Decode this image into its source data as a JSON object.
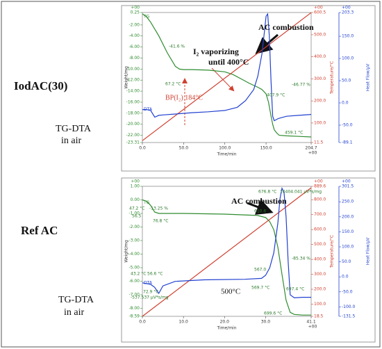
{
  "side_labels": [
    {
      "label": "IodAC(30)",
      "method": [
        "TG-DTA",
        "in air"
      ]
    },
    {
      "label": "Ref AC",
      "method": [
        "TG-DTA",
        "in air"
      ]
    }
  ],
  "chart_data": [
    {
      "type": "line",
      "x_label": "Time/min",
      "y_label": "Weight/mg",
      "y2_label": "Temperature/°C",
      "y3_label": "Heat Flow/µV",
      "exponent": "+00",
      "xlim": [
        0,
        204.7
      ],
      "xticks": [
        {
          "value": 0,
          "label": "0.0"
        },
        {
          "value": 50,
          "label": "50.0"
        },
        {
          "value": 100,
          "label": "100.0"
        },
        {
          "value": 150,
          "label": "150.0"
        },
        204.7
      ],
      "ylim": [
        -23.31,
        0.25
      ],
      "yticks": [
        0.25,
        {
          "value": -2,
          "label": "-2.00"
        },
        {
          "value": -4,
          "label": "-4.00"
        },
        {
          "value": -6,
          "label": "-6.00"
        },
        {
          "value": -8,
          "label": "-8.00"
        },
        {
          "value": -10,
          "label": "-10.00"
        },
        {
          "value": -12,
          "label": "-12.00"
        },
        {
          "value": -14,
          "label": "-14.00"
        },
        {
          "value": -16,
          "label": "-16.00"
        },
        {
          "value": -18,
          "label": "-18.00"
        },
        {
          "value": -20,
          "label": "-20.00"
        },
        {
          "value": -22,
          "label": "-22.00"
        },
        -23.31
      ],
      "y2lim": [
        11.5,
        600.5
      ],
      "y2ticks": [
        11.5,
        {
          "value": 100,
          "label": "100.0"
        },
        {
          "value": 200,
          "label": "200.0"
        },
        {
          "value": 300,
          "label": "300.0"
        },
        {
          "value": 400,
          "label": "400.0"
        },
        {
          "value": 500,
          "label": "500.0"
        },
        600.5
      ],
      "y3lim": [
        -89.1,
        203.3
      ],
      "y3ticks": [
        -89.1,
        {
          "value": -50,
          "label": "-50.0"
        },
        {
          "value": 0,
          "label": "0.0"
        },
        {
          "value": 50,
          "label": "50.0"
        },
        {
          "value": 100,
          "label": "100.0"
        },
        {
          "value": 150,
          "label": "150.0"
        },
        203.3
      ],
      "series": [
        {
          "name": "TG",
          "color": "#2e8b2e",
          "axis": "y",
          "x": [
            0,
            5,
            10,
            20,
            30,
            40,
            45,
            50,
            60,
            80,
            100,
            110,
            120,
            130,
            140,
            145,
            150,
            153,
            156,
            158,
            160,
            163,
            166,
            175,
            190,
            204.7
          ],
          "values": [
            0,
            -0.5,
            -1.5,
            -4,
            -7,
            -9.5,
            -10,
            -10.1,
            -10.1,
            -10.2,
            -10.5,
            -11,
            -11.8,
            -12.6,
            -13.3,
            -13.7,
            -14.5,
            -16,
            -18.5,
            -20,
            -21,
            -21.6,
            -22,
            -22.1,
            -22.2,
            -22.3
          ]
        },
        {
          "color": "#d04030",
          "axis": "y2",
          "x": [
            0,
            204.7
          ],
          "values": [
            20,
            600
          ]
        },
        {
          "name": "DTA",
          "color": "#2040d0",
          "axis": "y3",
          "x": [
            0,
            5,
            10,
            15,
            20,
            25,
            40,
            60,
            80,
            100,
            115,
            125,
            135,
            140,
            145,
            148,
            150,
            152,
            154,
            156,
            158,
            160,
            165,
            175,
            190,
            204.7
          ],
          "values": [
            -15,
            -15,
            -17,
            -32,
            -28,
            -27,
            -25,
            -22,
            -20,
            -17,
            -10,
            5,
            30,
            60,
            110,
            160,
            195,
            200,
            150,
            50,
            -30,
            -40,
            -35,
            -30,
            -28,
            -26
          ]
        }
      ],
      "annotations": [
        "AC combustion",
        "I₂ vaporizing",
        "until 400°C",
        "BP(I₂) 184°C",
        "-41.6 %",
        "67.2 °C",
        "407.9 °C",
        "459.1 °C",
        "-46.77 %"
      ]
    },
    {
      "type": "line",
      "x_label": "Time/min",
      "y_label": "Weight/mg",
      "y2_label": "Temperature/°C",
      "y3_label": "Heat Flow/µV",
      "exponent": "+00",
      "xlim": [
        0,
        41.1
      ],
      "xticks": [
        {
          "value": 0,
          "label": "0.0"
        },
        {
          "value": 10,
          "label": "10.0"
        },
        {
          "value": 20,
          "label": "20.0"
        },
        {
          "value": 30,
          "label": "30.0"
        },
        41.1
      ],
      "ylim": [
        -8.59,
        1.0
      ],
      "yticks": [
        {
          "value": 1,
          "label": "1.00"
        },
        {
          "value": 0,
          "label": "0.00"
        },
        {
          "value": -1,
          "label": "-1.00"
        },
        {
          "value": -2,
          "label": "-2.00"
        },
        {
          "value": -3,
          "label": "-3.00"
        },
        {
          "value": -4,
          "label": "-4.00"
        },
        {
          "value": -5,
          "label": "-5.00"
        },
        {
          "value": -6,
          "label": "-6.00"
        },
        {
          "value": -7,
          "label": "-7.00"
        },
        {
          "value": -8,
          "label": "-8.00"
        },
        -8.59
      ],
      "y2lim": [
        18.5,
        889.6
      ],
      "y2ticks": [
        18.5,
        {
          "value": 100,
          "label": "100.0"
        },
        {
          "value": 200,
          "label": "200.0"
        },
        {
          "value": 300,
          "label": "300.0"
        },
        {
          "value": 400,
          "label": "400.0"
        },
        {
          "value": 500,
          "label": "500.0"
        },
        {
          "value": 600,
          "label": "600.0"
        },
        {
          "value": 700,
          "label": "700.0"
        },
        {
          "value": 800,
          "label": "800.0"
        },
        889.6
      ],
      "y3lim": [
        -131.5,
        301.5
      ],
      "y3ticks": [
        -131.5,
        {
          "value": -100,
          "label": "-100.0"
        },
        {
          "value": -50,
          "label": "-50.0"
        },
        {
          "value": 0,
          "label": "0.0"
        },
        {
          "value": 50,
          "label": "50.0"
        },
        {
          "value": 100,
          "label": "100.0"
        },
        {
          "value": 150,
          "label": "150.0"
        },
        {
          "value": 200,
          "label": "200.0"
        },
        {
          "value": 250,
          "label": "250.0"
        },
        301.5
      ],
      "series": [
        {
          "name": "TG",
          "color": "#2e8b2e",
          "axis": "y",
          "x": [
            0,
            1,
            2,
            3,
            4,
            5,
            10,
            20,
            28,
            30,
            31,
            32,
            33,
            34,
            35,
            36,
            37,
            39,
            41.1
          ],
          "values": [
            0,
            -0.1,
            -0.4,
            -0.9,
            -1.0,
            -1.0,
            -1.0,
            -1.05,
            -1.15,
            -1.3,
            -1.6,
            -2.2,
            -3.5,
            -5.5,
            -7.4,
            -8.3,
            -8.45,
            -8.5,
            -8.5
          ]
        },
        {
          "color": "#d04030",
          "axis": "y2",
          "x": [
            0,
            41.1
          ],
          "values": [
            18.5,
            880
          ]
        },
        {
          "name": "DTA",
          "color": "#2040d0",
          "axis": "y3",
          "x": [
            0,
            2,
            3,
            4,
            5,
            8,
            15,
            25,
            29,
            30,
            31,
            32,
            33,
            33.5,
            34,
            34.5,
            35,
            35.5,
            36,
            37,
            39,
            41.1
          ],
          "values": [
            -20,
            -25,
            -35,
            -55,
            -30,
            -15,
            -10,
            -8,
            -5,
            5,
            30,
            80,
            180,
            260,
            295,
            280,
            200,
            50,
            -60,
            -70,
            -68,
            -68
          ]
        }
      ],
      "annotations": [
        "AC combustion",
        "500°C",
        "47.2 °C",
        "-13.25 %",
        "56.5",
        "76.8 °C",
        "610.6",
        "676.8 °C",
        "10404.041 µV*s/mg",
        "43.2 °C",
        "56.6 °C",
        "72.9 °C",
        "-537.537 µV*s/mg",
        "567.0",
        "569.7 °C",
        "697.4 °C",
        "-85.34 %",
        "699.6 °C"
      ]
    }
  ]
}
